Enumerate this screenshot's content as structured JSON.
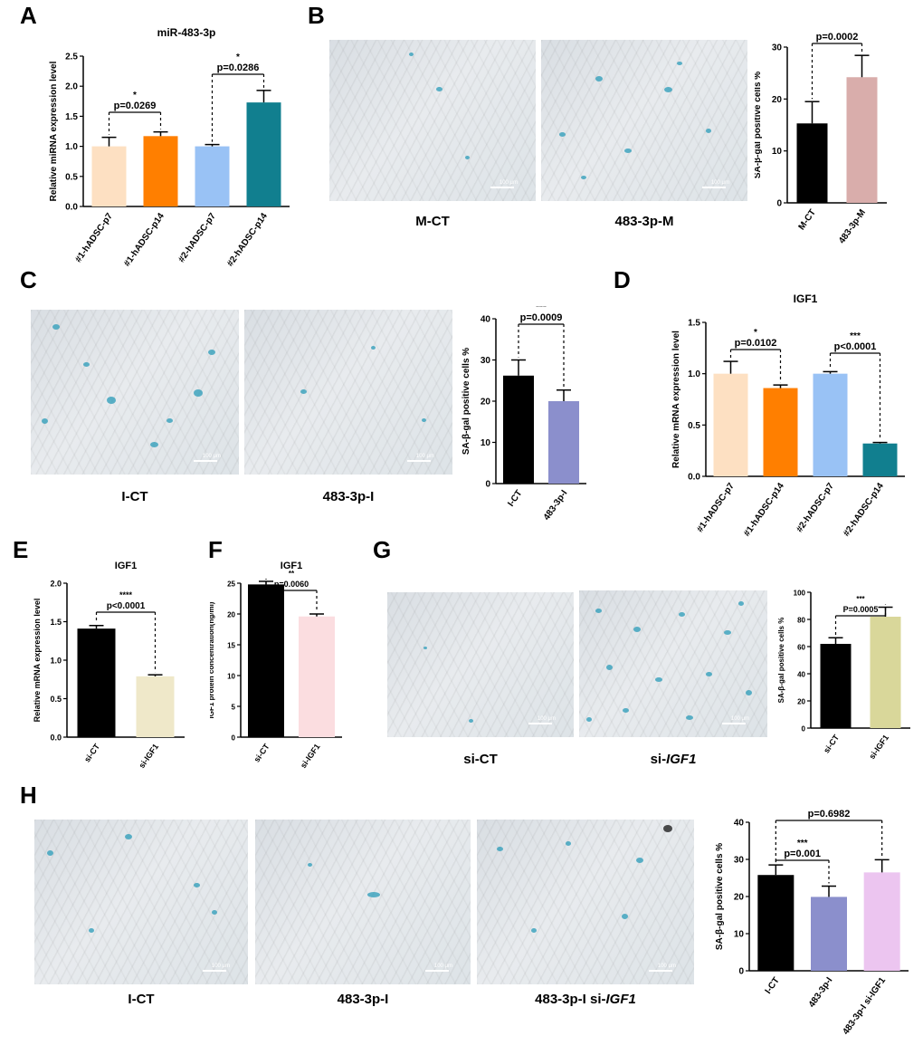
{
  "figure_label_a": "A",
  "figure_label_b": "B",
  "figure_label_c": "C",
  "figure_label_d": "D",
  "figure_label_e": "E",
  "figure_label_f": "F",
  "figure_label_g": "G",
  "figure_label_h": "H",
  "scale_bar": "100 μm",
  "micrographs": {
    "b1": "M-CT",
    "b2": "483-3p-M",
    "c1": "I-CT",
    "c2": "483-3p-I",
    "g1": "si-CT",
    "g2_prefix": "si-",
    "g2_gene": "IGF1",
    "h1": "I-CT",
    "h2": "483-3p-I",
    "h3_prefix": "483-3p-I si-",
    "h3_gene": "IGF1"
  },
  "chart_data": [
    {
      "id": "A",
      "type": "bar",
      "title": "miR-483-3p",
      "ylabel": "Relative miRNA expression level",
      "ylim": [
        0,
        2.5
      ],
      "yticks": [
        "0.0",
        "0.5",
        "1.0",
        "1.5",
        "2.0",
        "2.5"
      ],
      "ytick_values": [
        0,
        0.5,
        1.0,
        1.5,
        2.0,
        2.5
      ],
      "categories": [
        "#1-hADSC-p7",
        "#1-hADSC-p14",
        "#2-hADSC-p7",
        "#2-hADSC-p14"
      ],
      "values": [
        1.0,
        1.17,
        1.0,
        1.73
      ],
      "errors": [
        0.15,
        0.07,
        0.03,
        0.2
      ],
      "colors": [
        "#fde0c2",
        "#ff7f00",
        "#99c2f5",
        "#117f8f"
      ],
      "comparisons": [
        {
          "i": 0,
          "j": 1,
          "p": "p=0.0269",
          "stars": "*"
        },
        {
          "i": 2,
          "j": 3,
          "p": "p=0.0286",
          "stars": "*"
        }
      ]
    },
    {
      "id": "B",
      "type": "bar",
      "title": "",
      "ylabel": "SA-β-gal positive cells %",
      "ylim": [
        0,
        30
      ],
      "yticks": [
        "0",
        "10",
        "20",
        "30"
      ],
      "ytick_values": [
        0,
        10,
        20,
        30
      ],
      "categories": [
        "M-CT",
        "483-3p-M"
      ],
      "values": [
        15.3,
        24.2
      ],
      "errors": [
        4.2,
        4.2
      ],
      "colors": [
        "#000000",
        "#d9adab"
      ],
      "comparisons": [
        {
          "i": 0,
          "j": 1,
          "p": "p=0.0002",
          "stars": "***"
        }
      ]
    },
    {
      "id": "C",
      "type": "bar",
      "title": "",
      "ylabel": "SA-β-gal positive cells %",
      "ylim": [
        0,
        40
      ],
      "yticks": [
        "0",
        "10",
        "20",
        "30",
        "40"
      ],
      "ytick_values": [
        0,
        10,
        20,
        30,
        40
      ],
      "categories": [
        "I-CT",
        "483-3p-I"
      ],
      "values": [
        26.2,
        20.0
      ],
      "errors": [
        3.8,
        2.7
      ],
      "colors": [
        "#000000",
        "#8b8fcc"
      ],
      "comparisons": [
        {
          "i": 0,
          "j": 1,
          "p": "p=0.0009",
          "stars": "***"
        }
      ]
    },
    {
      "id": "D",
      "type": "bar",
      "title": "IGF1",
      "ylabel": "Relative mRNA expression level",
      "ylim": [
        0,
        1.5
      ],
      "yticks": [
        "0.0",
        "0.5",
        "1.0",
        "1.5"
      ],
      "ytick_values": [
        0,
        0.5,
        1.0,
        1.5
      ],
      "categories": [
        "#1-hADSC-p7",
        "#1-hADSC-p14",
        "#2-hADSC-p7",
        "#2-hADSC-p14"
      ],
      "values": [
        1.0,
        0.86,
        1.0,
        0.32
      ],
      "errors": [
        0.12,
        0.03,
        0.02,
        0.01
      ],
      "colors": [
        "#fde0c2",
        "#ff7f00",
        "#99c2f5",
        "#117f8f"
      ],
      "comparisons": [
        {
          "i": 0,
          "j": 1,
          "p": "p=0.0102",
          "stars": "*"
        },
        {
          "i": 2,
          "j": 3,
          "p": "p<0.0001",
          "stars": "***"
        }
      ]
    },
    {
      "id": "E",
      "type": "bar",
      "title": "IGF1",
      "ylabel": "Relative mRNA expression level",
      "ylim": [
        0,
        2.0
      ],
      "yticks": [
        "0.0",
        "0.5",
        "1.0",
        "1.5",
        "2.0"
      ],
      "ytick_values": [
        0,
        0.5,
        1.0,
        1.5,
        2.0
      ],
      "categories": [
        "si-CT",
        "si-IGF1"
      ],
      "values": [
        1.41,
        0.79
      ],
      "errors": [
        0.04,
        0.02
      ],
      "colors": [
        "#000000",
        "#efe8c9"
      ],
      "comparisons": [
        {
          "i": 0,
          "j": 1,
          "p": "p<0.0001",
          "stars": "****"
        }
      ]
    },
    {
      "id": "F",
      "type": "bar",
      "title": "IGF1",
      "ylabel": "IGF1 protein concentration(ng/ml)",
      "ylim": [
        0,
        25
      ],
      "yticks": [
        "0",
        "5",
        "10",
        "15",
        "20",
        "25"
      ],
      "ytick_values": [
        0,
        5,
        10,
        15,
        20,
        25
      ],
      "categories": [
        "si-CT",
        "si-IGF1"
      ],
      "values": [
        24.8,
        19.6
      ],
      "errors": [
        0.5,
        0.4
      ],
      "colors": [
        "#000000",
        "#fbdde0"
      ],
      "comparisons": [
        {
          "i": 0,
          "j": 1,
          "p": "p=0.0060",
          "stars": "**"
        }
      ]
    },
    {
      "id": "G",
      "type": "bar",
      "title": "",
      "ylabel": "SA-β-gal positive cells %",
      "ylim": [
        0,
        100
      ],
      "yticks": [
        "0",
        "20",
        "40",
        "60",
        "80",
        "100"
      ],
      "ytick_values": [
        0,
        20,
        40,
        60,
        80,
        100
      ],
      "categories": [
        "si-CT",
        "si-IGF1"
      ],
      "values": [
        62.0,
        82.0
      ],
      "errors": [
        4.5,
        7.0
      ],
      "colors": [
        "#000000",
        "#d9d79a"
      ],
      "comparisons": [
        {
          "i": 0,
          "j": 1,
          "p": "P=0.0005",
          "stars": "***"
        }
      ]
    },
    {
      "id": "H",
      "type": "bar",
      "title": "",
      "ylabel": "SA-β-gal positive cells %",
      "ylim": [
        0,
        40
      ],
      "yticks": [
        "0",
        "10",
        "20",
        "30",
        "40"
      ],
      "ytick_values": [
        0,
        10,
        20,
        30,
        40
      ],
      "categories": [
        "I-CT",
        "483-3p-I",
        "483-3p-I si-IGF1"
      ],
      "values": [
        25.8,
        19.9,
        26.5
      ],
      "errors": [
        2.7,
        2.9,
        3.4
      ],
      "colors": [
        "#000000",
        "#8b8fcc",
        "#ecc5f0"
      ],
      "comparisons": [
        {
          "i": 0,
          "j": 1,
          "p": "p=0.001",
          "stars": "***"
        },
        {
          "i": 0,
          "j": 2,
          "p": "p=0.6982",
          "stars": ""
        }
      ]
    }
  ]
}
